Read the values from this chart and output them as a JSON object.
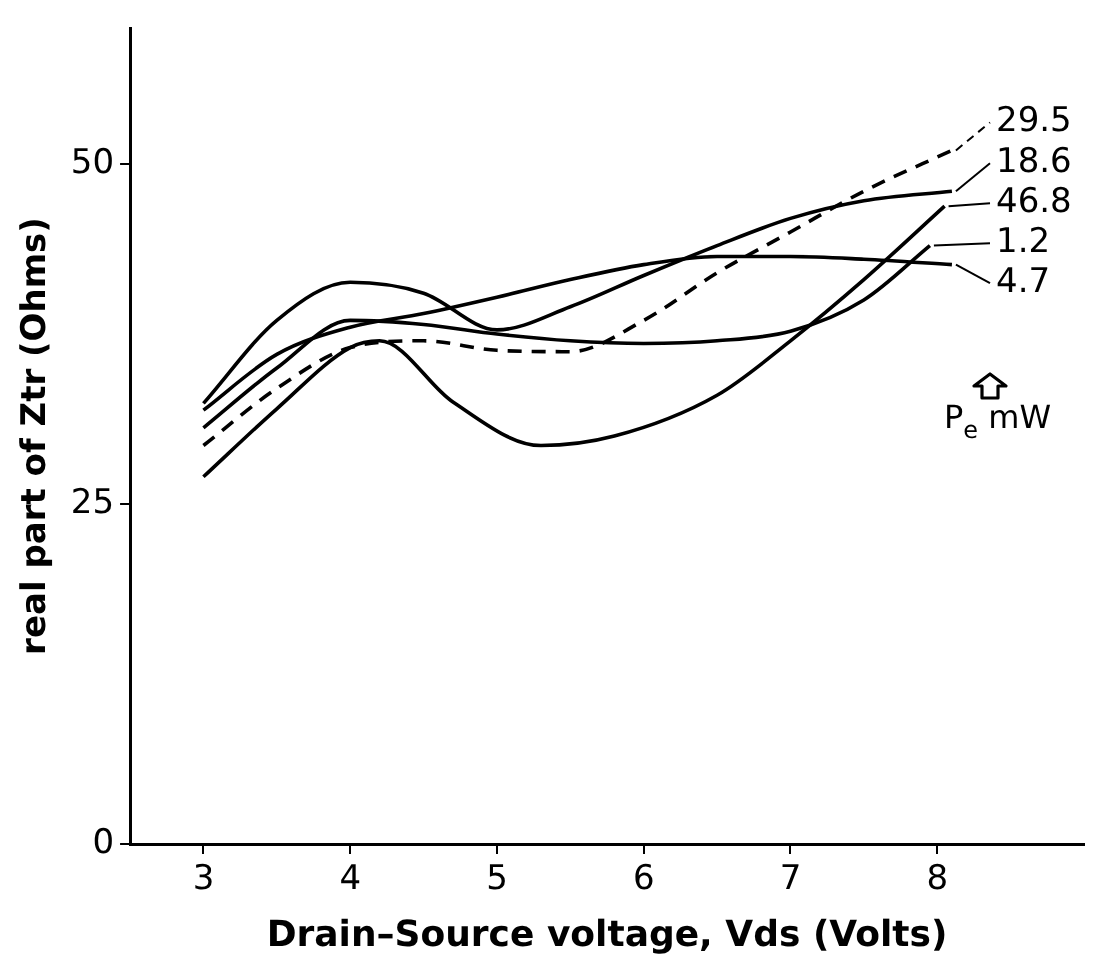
{
  "chart_data": {
    "type": "line",
    "xlabel": "Drain–Source voltage, Vds (Volts)",
    "ylabel": "real part of Ztr (Ohms)",
    "xlim": [
      2.5,
      9
    ],
    "xticks": [
      3,
      4,
      5,
      6,
      7,
      8
    ],
    "ylim": [
      0,
      60
    ],
    "yticks": [
      0,
      25,
      50
    ],
    "grid": false,
    "legend": "top right",
    "marker": "none",
    "annotations": [
      "P$_{e}$ mW"
    ],
    "series": [
      {
        "name": "29.5",
        "color": "#000000",
        "line_style": "dashed",
        "x": [
          3,
          3.5,
          4,
          4.5,
          5,
          5.5,
          6,
          6.5,
          7,
          7.5,
          8.1
        ],
        "values": [
          29.3,
          33.5,
          36.5,
          37,
          36.3,
          36.2,
          38.5,
          42,
          45,
          48,
          51
        ]
      },
      {
        "name": "18.6",
        "color": "#000000",
        "x": [
          3,
          3.5,
          4,
          4.5,
          5,
          5.5,
          6,
          6.5,
          7,
          7.5,
          8.1
        ],
        "values": [
          32.4,
          38.5,
          41.3,
          40.5,
          37.8,
          39.5,
          41.8,
          44,
          46,
          47.3,
          48
        ]
      },
      {
        "name": "46.8",
        "color": "#000000",
        "x": [
          3,
          3.5,
          4,
          4.2,
          4.7,
          5.3,
          5.8,
          6.5,
          7,
          7.5,
          8.05
        ],
        "values": [
          27,
          32,
          36.5,
          37,
          32.5,
          29.3,
          30,
          33,
          37,
          41.5,
          46.9
        ]
      },
      {
        "name": "1.2",
        "color": "#000000",
        "x": [
          3,
          3.5,
          4,
          4.5,
          5,
          5.5,
          6,
          6.5,
          7,
          7.5,
          7.95
        ],
        "values": [
          30.6,
          35,
          38.5,
          38.2,
          37.5,
          37,
          36.8,
          37,
          37.7,
          40,
          44
        ]
      },
      {
        "name": "4.7",
        "color": "#000000",
        "x": [
          3,
          3.5,
          4,
          4.5,
          5,
          5.5,
          6,
          6.5,
          7,
          7.5,
          8.1
        ],
        "values": [
          31.9,
          36,
          38,
          39,
          40.2,
          41.5,
          42.6,
          43.2,
          43.2,
          43,
          42.6
        ]
      }
    ]
  }
}
